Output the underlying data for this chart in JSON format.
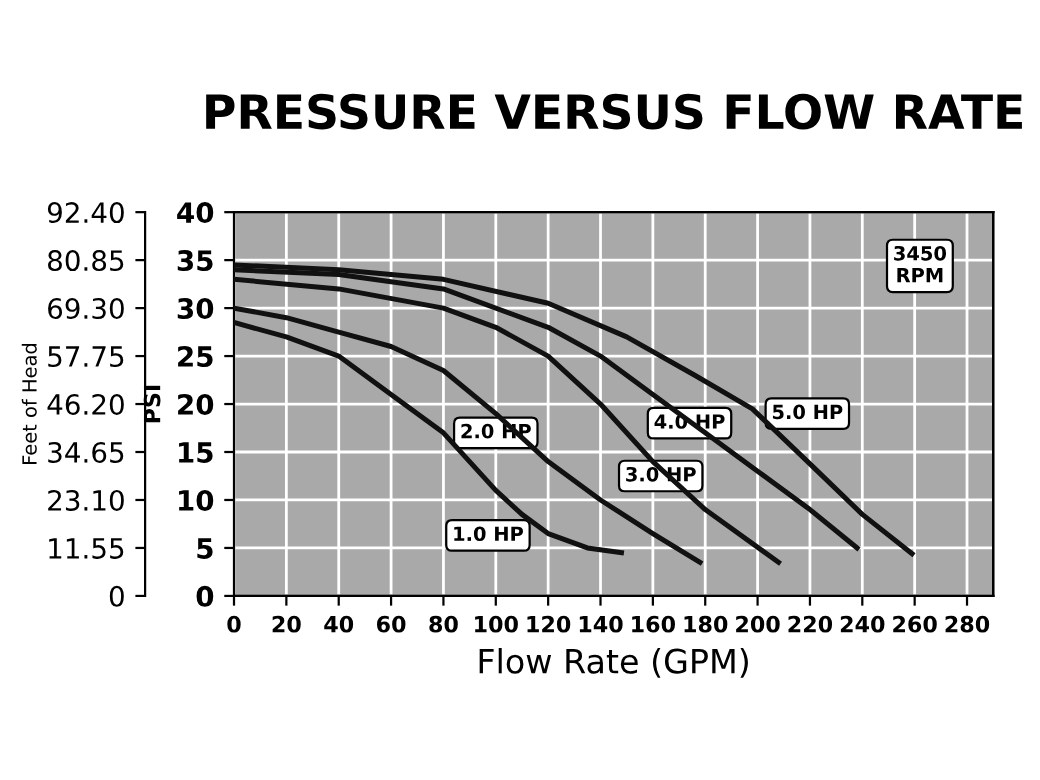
{
  "chart_data": {
    "type": "line",
    "title": "PRESSURE VERSUS FLOW RATE",
    "xlabel": "Flow Rate (GPM)",
    "ylabel": "PSI",
    "y2label": "Feet of Head",
    "series": [
      {
        "x": [
          0,
          20,
          40,
          60,
          80,
          90,
          100,
          110,
          120,
          135,
          148
        ],
        "values": [
          28.5,
          27,
          25,
          21,
          17,
          14,
          11,
          8.5,
          6.5,
          5,
          4.5
        ],
        "color": "#111111"
      },
      {
        "x": [
          0,
          20,
          40,
          60,
          80,
          100,
          120,
          140,
          160,
          178
        ],
        "values": [
          30,
          29,
          27.5,
          26,
          23.5,
          19,
          14,
          10,
          6.5,
          3.5
        ],
        "color": "#111111"
      },
      {
        "x": [
          0,
          40,
          80,
          100,
          120,
          140,
          160,
          180,
          208
        ],
        "values": [
          33,
          32,
          30,
          28,
          25,
          20,
          14,
          9,
          3.5
        ],
        "color": "#111111"
      },
      {
        "x": [
          0,
          40,
          80,
          120,
          140,
          160,
          180,
          200,
          220,
          238
        ],
        "values": [
          34,
          33.5,
          32,
          28,
          25,
          21,
          17,
          13,
          9,
          5
        ],
        "color": "#111111"
      },
      {
        "x": [
          0,
          40,
          80,
          120,
          150,
          176,
          198,
          221,
          240,
          259
        ],
        "values": [
          34.5,
          34,
          33,
          30.5,
          27,
          23,
          19.5,
          13.5,
          8.5,
          4.4
        ],
        "color": "#111111"
      }
    ],
    "xlim": [
      0,
      290
    ],
    "xticks": [
      0,
      20,
      40,
      60,
      80,
      100,
      120,
      140,
      160,
      180,
      200,
      220,
      240,
      260,
      280
    ],
    "ylim": [
      0,
      40
    ],
    "yticks": [
      0,
      5,
      10,
      15,
      20,
      25,
      30,
      35,
      40
    ],
    "y2lim": [
      0,
      92.4
    ],
    "y2ticks": [
      0,
      11.55,
      {
        "value": 23.1,
        "label": "23.10"
      },
      34.65,
      {
        "value": 46.2,
        "label": "46.20"
      },
      57.75,
      {
        "value": 69.3,
        "label": "69.30"
      },
      80.85,
      {
        "value": 92.4,
        "label": "92.40"
      }
    ],
    "annotations": [
      {
        "text": "1.0 HP",
        "x": 97,
        "y": 6.3
      },
      {
        "text": "2.0 HP",
        "x": 100,
        "y": 17
      },
      {
        "text": "3.0 HP",
        "x": 163,
        "y": 12.5
      },
      {
        "text": "4.0 HP",
        "x": 174,
        "y": 18
      },
      {
        "text": "5.0 HP",
        "x": 219,
        "y": 19
      },
      {
        "text": "3450\nRPM",
        "x": 262,
        "y": 34.4
      }
    ],
    "grid": true,
    "marker": "none",
    "line_style": "solid"
  }
}
